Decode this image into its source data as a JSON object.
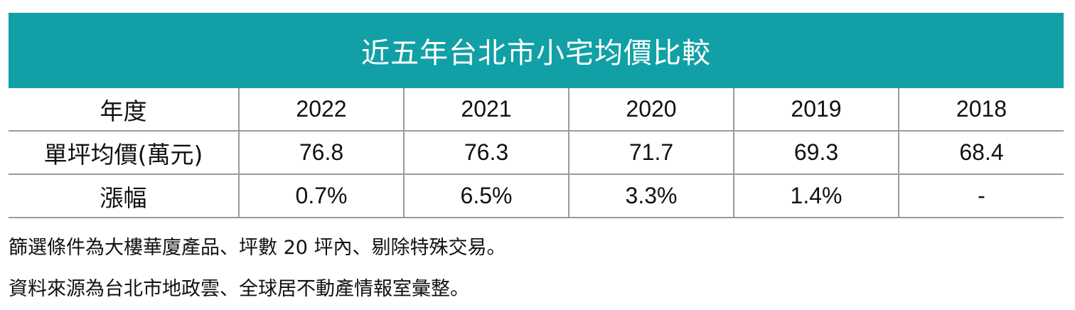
{
  "title": "近五年台北市小宅均價比較",
  "chart_data": {
    "type": "table",
    "title": "近五年台北市小宅均價比較",
    "header_label": "年度",
    "columns": [
      "2022",
      "2021",
      "2020",
      "2019",
      "2018"
    ],
    "rows": [
      {
        "label": "單坪均價(萬元)",
        "values": [
          "76.8",
          "76.3",
          "71.7",
          "69.3",
          "68.4"
        ]
      },
      {
        "label": "漲幅",
        "values": [
          "0.7%",
          "6.5%",
          "3.3%",
          "1.4%",
          "-"
        ]
      }
    ],
    "colors": {
      "header_bg": "#11a0a5",
      "header_text": "#ffffff",
      "border": "#9a9a9a"
    }
  },
  "notes": [
    "篩選條件為大樓華廈產品、坪數 20 坪內、剔除特殊交易。",
    "資料來源為台北市地政雲、全球居不動產情報室彙整。"
  ]
}
